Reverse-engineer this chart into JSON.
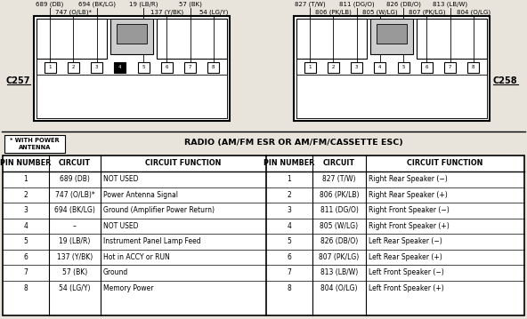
{
  "title": "RADIO (AM/FM ESR OR AM/FM/CASSETTE ESC)",
  "note": "* WITH POWER\nANTENNA",
  "connector_left": "C257",
  "connector_right": "C258",
  "table_headers": [
    "PIN NUMBER",
    "CIRCUIT",
    "CIRCUIT FUNCTION",
    "PIN NUMBER",
    "CIRCUIT",
    "CIRCUIT FUNCTION"
  ],
  "table_data_left": [
    [
      "1",
      "689 (DB)",
      "NOT USED"
    ],
    [
      "2",
      "747 (O/LB)*",
      "Power Antenna Signal"
    ],
    [
      "3",
      "694 (BK/LG)",
      "Ground (Amplifier Power Return)"
    ],
    [
      "4",
      "–",
      "NOT USED"
    ],
    [
      "5",
      "19 (LB/R)",
      "Instrument Panel Lamp Feed"
    ],
    [
      "6",
      "137 (Y/BK)",
      "Hot in ACCY or RUN"
    ],
    [
      "7",
      "57 (BK)",
      "Ground"
    ],
    [
      "8",
      "54 (LG/Y)",
      "Memory Power"
    ]
  ],
  "table_data_right": [
    [
      "1",
      "827 (T/W)",
      "Right Rear Speaker (−)"
    ],
    [
      "2",
      "806 (PK/LB)",
      "Right Rear Speaker (+)"
    ],
    [
      "3",
      "811 (DG/O)",
      "Right Front Speaker (−)"
    ],
    [
      "4",
      "805 (W/LG)",
      "Right Front Speaker (+)"
    ],
    [
      "5",
      "826 (DB/O)",
      "Left Rear Speaker (−)"
    ],
    [
      "6",
      "807 (PK/LG)",
      "Left Rear Speaker (+)"
    ],
    [
      "7",
      "813 (LB/W)",
      "Left Front Speaker (−)"
    ],
    [
      "8",
      "804 (O/LG)",
      "Left Front Speaker (+)"
    ]
  ],
  "left_wires": [
    [
      0,
      "689 (DB)",
      0
    ],
    [
      1,
      "747 (O/LB)*",
      1
    ],
    [
      2,
      "694 (BK/LG)",
      0
    ],
    [
      4,
      "19 (LB/R)",
      0
    ],
    [
      5,
      "137 (Y/BK)",
      1
    ],
    [
      6,
      "57 (BK)",
      0
    ],
    [
      7,
      "54 (LG/Y)",
      1
    ]
  ],
  "right_wires": [
    [
      0,
      "827 (T/W)",
      0
    ],
    [
      1,
      "806 (PK/LB)",
      1
    ],
    [
      2,
      "811 (DG/O)",
      0
    ],
    [
      3,
      "805 (W/LG)",
      1
    ],
    [
      4,
      "826 (DB/O)",
      0
    ],
    [
      5,
      "807 (PK/LG)",
      1
    ],
    [
      6,
      "813 (LB/W)",
      0
    ],
    [
      7,
      "804 (O/LG)",
      1
    ]
  ],
  "bg_color": "#e8e4dc",
  "line_color": "#000000",
  "text_color": "#000000",
  "pin4_fill": "#000000",
  "white": "#ffffff"
}
